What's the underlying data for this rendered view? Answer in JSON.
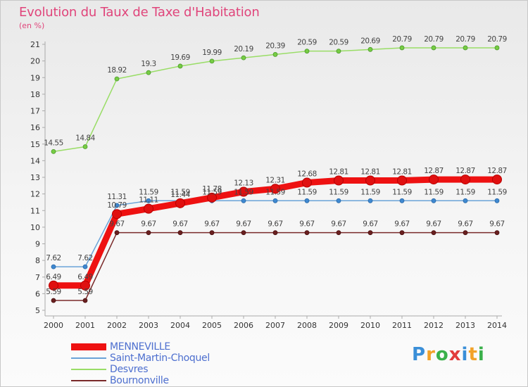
{
  "title": "Evolution du Taux de Taxe d'Habitation",
  "subtitle": "(en %)",
  "logo": {
    "letters": [
      "P",
      "r",
      "o",
      "x",
      "i",
      "t",
      "i"
    ],
    "colors": [
      "#3a8fd8",
      "#f2a228",
      "#3ab04a",
      "#e23c3c",
      "#3a8fd8",
      "#f2a228",
      "#3ab04a"
    ]
  },
  "chart_data": {
    "type": "line",
    "categories": [
      "2000",
      "2001",
      "2002",
      "2003",
      "2004",
      "2005",
      "2006",
      "2007",
      "2008",
      "2009",
      "2010",
      "2011",
      "2012",
      "2013",
      "2014"
    ],
    "ylim": [
      5,
      21
    ],
    "yticks": [
      "5",
      "6",
      "7",
      "8",
      "9",
      "10",
      "11",
      "12",
      "13",
      "14",
      "15",
      "16",
      "17",
      "18",
      "19",
      "20",
      "21"
    ],
    "grid": false,
    "series": [
      {
        "name": "MENNEVILLE",
        "color": "#ee1111",
        "values": [
          6.49,
          6.49,
          10.79,
          11.11,
          11.44,
          11.78,
          12.13,
          12.31,
          12.68,
          12.81,
          12.81,
          12.81,
          12.87,
          12.87,
          12.87
        ],
        "labels": [
          "6.49",
          "6.49",
          "10.79",
          "11.11",
          "11.44",
          "11.78",
          "12.13",
          "12.31",
          "12.68",
          "12.81",
          "12.81",
          "12.81",
          "12.87",
          "12.87",
          "12.87"
        ]
      },
      {
        "name": "Saint-Martin-Choquel",
        "color": "#6aa3d8",
        "values": [
          7.62,
          7.62,
          11.31,
          11.59,
          11.59,
          11.59,
          11.59,
          11.59,
          11.59,
          11.59,
          11.59,
          11.59,
          11.59,
          11.59,
          11.59
        ],
        "labels": [
          "7.62",
          "7.62",
          "11.31",
          "11.59",
          "11.59",
          "11.59",
          "11.59",
          "11.59",
          "11.59",
          "11.59",
          "11.59",
          "11.59",
          "11.59",
          "11.59",
          "11.59"
        ]
      },
      {
        "name": "Desvres",
        "color": "#99dd66",
        "values": [
          14.55,
          14.84,
          18.92,
          19.3,
          19.69,
          19.99,
          20.19,
          20.39,
          20.59,
          20.59,
          20.69,
          20.79,
          20.79,
          20.79,
          20.79
        ],
        "labels": [
          "14.55",
          "14.84",
          "18.92",
          "19.3",
          "19.69",
          "19.99",
          "20.19",
          "20.39",
          "20.59",
          "20.59",
          "20.69",
          "20.79",
          "20.79",
          "20.79",
          "20.79"
        ]
      },
      {
        "name": "Bournonville",
        "color": "#7a2a2a",
        "values": [
          5.59,
          5.59,
          9.67,
          9.67,
          9.67,
          9.67,
          9.67,
          9.67,
          9.67,
          9.67,
          9.67,
          9.67,
          9.67,
          9.67,
          9.67
        ],
        "labels": [
          "5.59",
          "5.59",
          "9.67",
          "9.67",
          "9.67",
          "9.67",
          "9.67",
          "9.67",
          "9.67",
          "9.67",
          "9.67",
          "9.67",
          "9.67",
          "9.67",
          "9.67"
        ]
      }
    ]
  }
}
